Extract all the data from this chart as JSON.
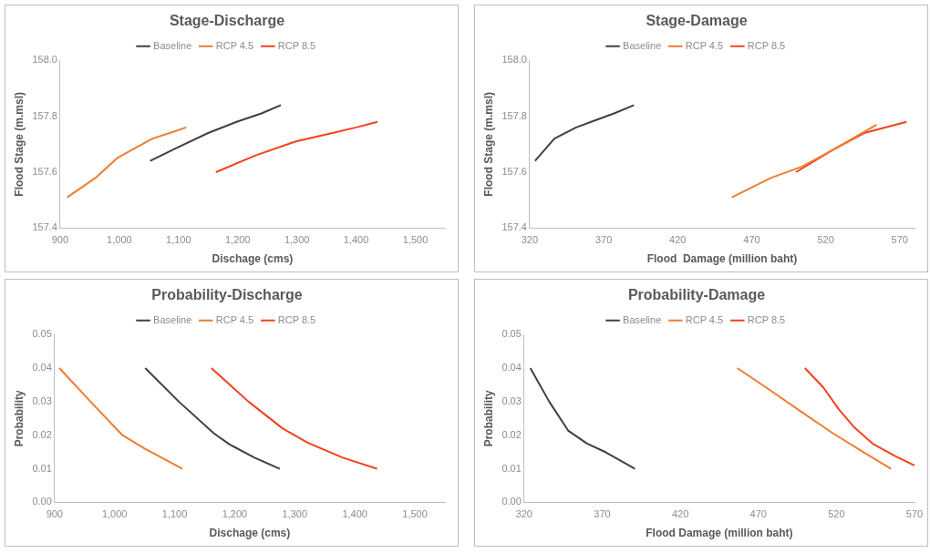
{
  "chart_data": [
    {
      "type": "line",
      "title": "Stage-Discharge",
      "xlabel": "Dischage (cms)",
      "ylabel": "Flood Stage (m.msl)",
      "xlim": [
        900,
        1550
      ],
      "xticks": [
        900,
        {
          "value": 1000,
          "label": "1,000"
        },
        {
          "value": 1100,
          "label": "1,100"
        },
        {
          "value": 1200,
          "label": "1,200"
        },
        {
          "value": 1300,
          "label": "1,300"
        },
        {
          "value": 1400,
          "label": "1,400"
        },
        {
          "value": 1500,
          "label": "1,500"
        }
      ],
      "ylim": [
        157.4,
        158
      ],
      "yticks": [
        157.4,
        157.6,
        157.8,
        {
          "value": 158,
          "label": "158.0"
        }
      ],
      "grid": false,
      "legend": "top",
      "marker": "none",
      "series": [
        {
          "name": "Baseline",
          "color": "#404040",
          "x": [
            1052,
            1100,
            1150,
            1198,
            1240,
            1273
          ],
          "values": [
            157.64,
            157.69,
            157.74,
            157.78,
            157.81,
            157.84
          ]
        },
        {
          "name": "RCP 4.5",
          "color": "#ed7d31",
          "x": [
            912,
            960,
            996,
            1030,
            1056,
            1085,
            1113
          ],
          "values": [
            157.51,
            157.58,
            157.65,
            157.69,
            157.72,
            157.74,
            157.76
          ]
        },
        {
          "name": "RCP 8.5",
          "color": "#f4411b",
          "x": [
            1163,
            1230,
            1298,
            1360,
            1400,
            1436
          ],
          "values": [
            157.6,
            157.66,
            157.71,
            157.74,
            157.76,
            157.78
          ]
        }
      ]
    },
    {
      "type": "line",
      "title": "Stage-Damage",
      "xlabel": "Flood  Damage (million baht)",
      "ylabel": "Flood Stage (m.msl)",
      "xlim": [
        320,
        580
      ],
      "xticks": [
        320,
        370,
        420,
        470,
        520,
        570
      ],
      "ylim": [
        157.4,
        158
      ],
      "yticks": [
        157.4,
        157.6,
        157.8,
        {
          "value": 158,
          "label": "158.0"
        }
      ],
      "grid": false,
      "legend": "top",
      "marker": "none",
      "series": [
        {
          "name": "Baseline",
          "color": "#404040",
          "x": [
            323.6,
            336.7,
            351.4,
            364,
            377,
            390.5
          ],
          "values": [
            157.64,
            157.72,
            157.76,
            157.785,
            157.81,
            157.84
          ]
        },
        {
          "name": "RCP 4.5",
          "color": "#ed7d31",
          "x": [
            456.6,
            483.2,
            504,
            525,
            554.4
          ],
          "values": [
            157.51,
            157.58,
            157.62,
            157.68,
            157.77
          ]
        },
        {
          "name": "RCP 8.5",
          "color": "#f4411b",
          "x": [
            499.9,
            525,
            546,
            574.6
          ],
          "values": [
            157.6,
            157.68,
            157.74,
            157.78
          ]
        }
      ]
    },
    {
      "type": "line",
      "title": "Probability-Discharge",
      "xlabel": "Dischage (cms)",
      "ylabel": "Probability",
      "xlim": [
        900,
        1550
      ],
      "xticks": [
        900,
        {
          "value": 1000,
          "label": "1,000"
        },
        {
          "value": 1100,
          "label": "1,100"
        },
        {
          "value": 1200,
          "label": "1,200"
        },
        {
          "value": 1300,
          "label": "1,300"
        },
        {
          "value": 1400,
          "label": "1,400"
        },
        {
          "value": 1500,
          "label": "1,500"
        }
      ],
      "ylim": [
        0,
        0.05
      ],
      "yticks": [
        {
          "value": 0,
          "label": "0.00"
        },
        {
          "value": 0.01,
          "label": "0.01"
        },
        {
          "value": 0.02,
          "label": "0.02"
        },
        {
          "value": 0.03,
          "label": "0.03"
        },
        {
          "value": 0.04,
          "label": "0.04"
        },
        {
          "value": 0.05,
          "label": "0.05"
        }
      ],
      "grid": false,
      "legend": "top",
      "marker": "none",
      "series": [
        {
          "name": "Baseline",
          "color": "#404040",
          "x": [
            1051,
            1107,
            1165,
            1191,
            1233,
            1275
          ],
          "values": [
            0.04,
            0.03,
            0.0206,
            0.0173,
            0.0133,
            0.01
          ]
        },
        {
          "name": "RCP 4.5",
          "color": "#ed7d31",
          "x": [
            908,
            960,
            1013,
            1050,
            1113
          ],
          "values": [
            0.04,
            0.03,
            0.02,
            0.016,
            0.01
          ]
        },
        {
          "name": "RCP 8.5",
          "color": "#f4411b",
          "x": [
            1161,
            1223,
            1280,
            1322,
            1380,
            1437
          ],
          "values": [
            0.04,
            0.03,
            0.022,
            0.0177,
            0.0133,
            0.01
          ]
        }
      ]
    },
    {
      "type": "line",
      "title": "Probability-Damage",
      "xlabel": "Flood Damage (million baht)",
      "ylabel": "Probability",
      "xlim": [
        320,
        570
      ],
      "xticks": [
        320,
        370,
        420,
        470,
        520,
        570
      ],
      "ylim": [
        0,
        0.05
      ],
      "yticks": [
        {
          "value": 0,
          "label": "0.00"
        },
        {
          "value": 0.01,
          "label": "0.01"
        },
        {
          "value": 0.02,
          "label": "0.02"
        },
        {
          "value": 0.03,
          "label": "0.03"
        },
        {
          "value": 0.04,
          "label": "0.04"
        },
        {
          "value": 0.05,
          "label": "0.05"
        }
      ],
      "grid": false,
      "legend": "top",
      "marker": "none",
      "series": [
        {
          "name": "Baseline",
          "color": "#404040",
          "x": [
            324,
            336.1,
            348.2,
            360.3,
            372.4,
            391
          ],
          "values": [
            0.04,
            0.03,
            0.0214,
            0.0175,
            0.0149,
            0.01
          ]
        },
        {
          "name": "RCP 4.5",
          "color": "#ed7d31",
          "x": [
            456.5,
            477.3,
            497.4,
            517.7,
            537.8,
            555
          ],
          "values": [
            0.04,
            0.0335,
            0.027,
            0.0206,
            0.0148,
            0.01
          ]
        },
        {
          "name": "RCP 8.5",
          "color": "#f4411b",
          "x": [
            499.8,
            511.5,
            521.6,
            531.7,
            543.8,
            557.9,
            570
          ],
          "values": [
            0.04,
            0.0343,
            0.0277,
            0.0222,
            0.0173,
            0.0137,
            0.011
          ]
        }
      ]
    }
  ]
}
